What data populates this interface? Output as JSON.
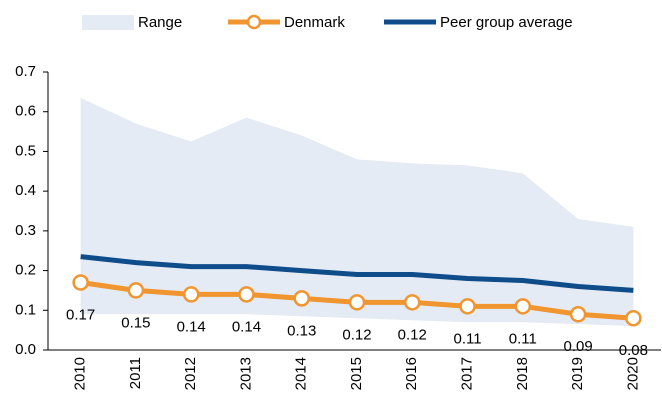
{
  "chart_data": {
    "type": "line",
    "categories": [
      "2010",
      "2011",
      "2012",
      "2013",
      "2014",
      "2015",
      "2016",
      "2017",
      "2018",
      "2019",
      "2020"
    ],
    "series": [
      {
        "name": "Range",
        "color": "#e4ebf4",
        "high": [
          0.635,
          0.57,
          0.525,
          0.585,
          0.54,
          0.48,
          0.47,
          0.465,
          0.445,
          0.33,
          0.31
        ],
        "low": [
          0.09,
          0.09,
          0.09,
          0.09,
          0.085,
          0.08,
          0.075,
          0.07,
          0.07,
          0.065,
          0.06
        ]
      },
      {
        "name": "Denmark",
        "color": "#f0952f",
        "values": [
          0.17,
          0.15,
          0.14,
          0.14,
          0.13,
          0.12,
          0.12,
          0.11,
          0.11,
          0.09,
          0.08
        ]
      },
      {
        "name": "Peer group average",
        "color": "#0f4c8a",
        "values": [
          0.235,
          0.22,
          0.21,
          0.21,
          0.2,
          0.19,
          0.19,
          0.18,
          0.175,
          0.16,
          0.15
        ]
      }
    ],
    "ylim": [
      0,
      0.7
    ],
    "yticks": [
      {
        "value": 0,
        "label": "0.0"
      },
      0.1,
      0.2,
      0.3,
      0.4,
      0.5,
      0.6,
      0.7
    ]
  }
}
